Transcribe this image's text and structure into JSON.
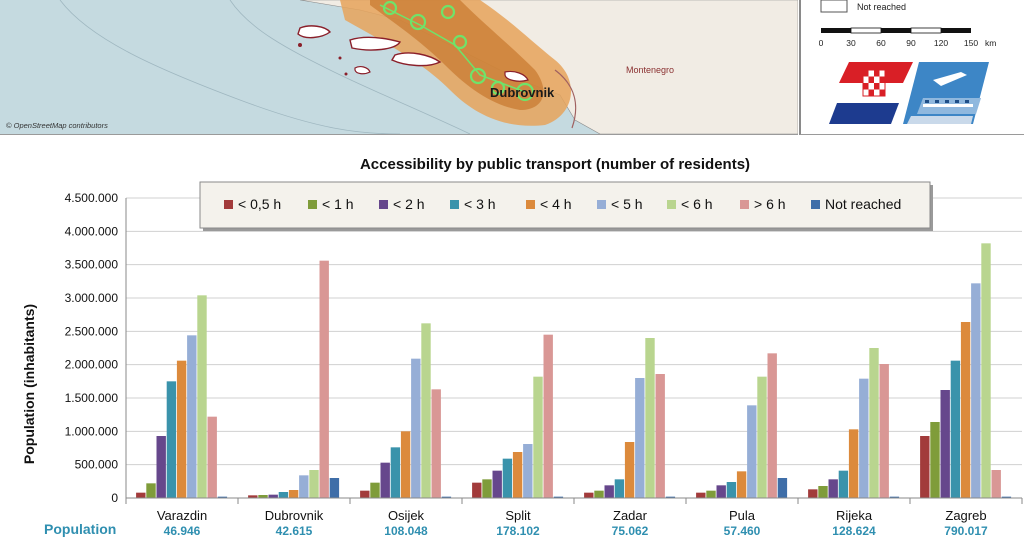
{
  "map": {
    "city_label": "Dubrovnik",
    "country_label": "Montenegro",
    "attribution": "© OpenStreetMap contributors",
    "legend": {
      "not_reached_label": "Not reached",
      "scale_ticks": [
        "0",
        "30",
        "60",
        "90",
        "120",
        "150"
      ],
      "scale_unit": "km"
    }
  },
  "chart_data": {
    "type": "bar",
    "title": "Accessibility by public transport (number of residents)",
    "ylabel": "Population (inhabitants)",
    "ylim": [
      0,
      4500000
    ],
    "yticks": [
      "0",
      "500.000",
      "1.000.000",
      "1.500.000",
      "2.000.000",
      "2.500.000",
      "3.000.000",
      "3.500.000",
      "4.000.000",
      "4.500.000"
    ],
    "ytick_values": [
      0,
      500000,
      1000000,
      1500000,
      2000000,
      2500000,
      3000000,
      3500000,
      4000000,
      4500000
    ],
    "categories": [
      "Varazdin",
      "Dubrovnik",
      "Osijek",
      "Split",
      "Zadar",
      "Pula",
      "Rijeka",
      "Zagreb"
    ],
    "population_label": "Population",
    "population_values": [
      "46.946",
      "42.615",
      "108.048",
      "178.102",
      "75.062",
      "57.460",
      "128.624",
      "790.017"
    ],
    "legend_position": "top-center",
    "series": [
      {
        "name": "< 0,5 h",
        "color": "#a23b3b",
        "values": [
          80000,
          40000,
          110000,
          230000,
          80000,
          80000,
          130000,
          930000
        ]
      },
      {
        "name": "< 1 h",
        "color": "#7f9c3a",
        "values": [
          220000,
          45000,
          230000,
          280000,
          110000,
          110000,
          180000,
          1140000
        ]
      },
      {
        "name": "< 2 h",
        "color": "#66478c",
        "values": [
          930000,
          50000,
          530000,
          410000,
          190000,
          190000,
          280000,
          1620000
        ]
      },
      {
        "name": "< 3 h",
        "color": "#3a93ab",
        "values": [
          1750000,
          90000,
          760000,
          590000,
          280000,
          240000,
          410000,
          2060000
        ]
      },
      {
        "name": "< 4 h",
        "color": "#dc8a3c",
        "values": [
          2060000,
          120000,
          1000000,
          690000,
          840000,
          400000,
          1030000,
          2640000
        ]
      },
      {
        "name": "< 5 h",
        "color": "#96aed6",
        "values": [
          2440000,
          340000,
          2090000,
          810000,
          1800000,
          1390000,
          1790000,
          3220000
        ]
      },
      {
        "name": "< 6 h",
        "color": "#b9d58f",
        "values": [
          3040000,
          420000,
          2620000,
          1820000,
          2400000,
          1820000,
          2250000,
          3820000
        ]
      },
      {
        "name": "> 6 h",
        "color": "#d99795",
        "values": [
          1220000,
          3560000,
          1630000,
          2450000,
          1860000,
          2170000,
          2010000,
          420000
        ]
      },
      {
        "name": "Not reached",
        "color": "#3f6ea8",
        "values": [
          20000,
          300000,
          20000,
          20000,
          20000,
          300000,
          20000,
          20000
        ]
      }
    ]
  }
}
